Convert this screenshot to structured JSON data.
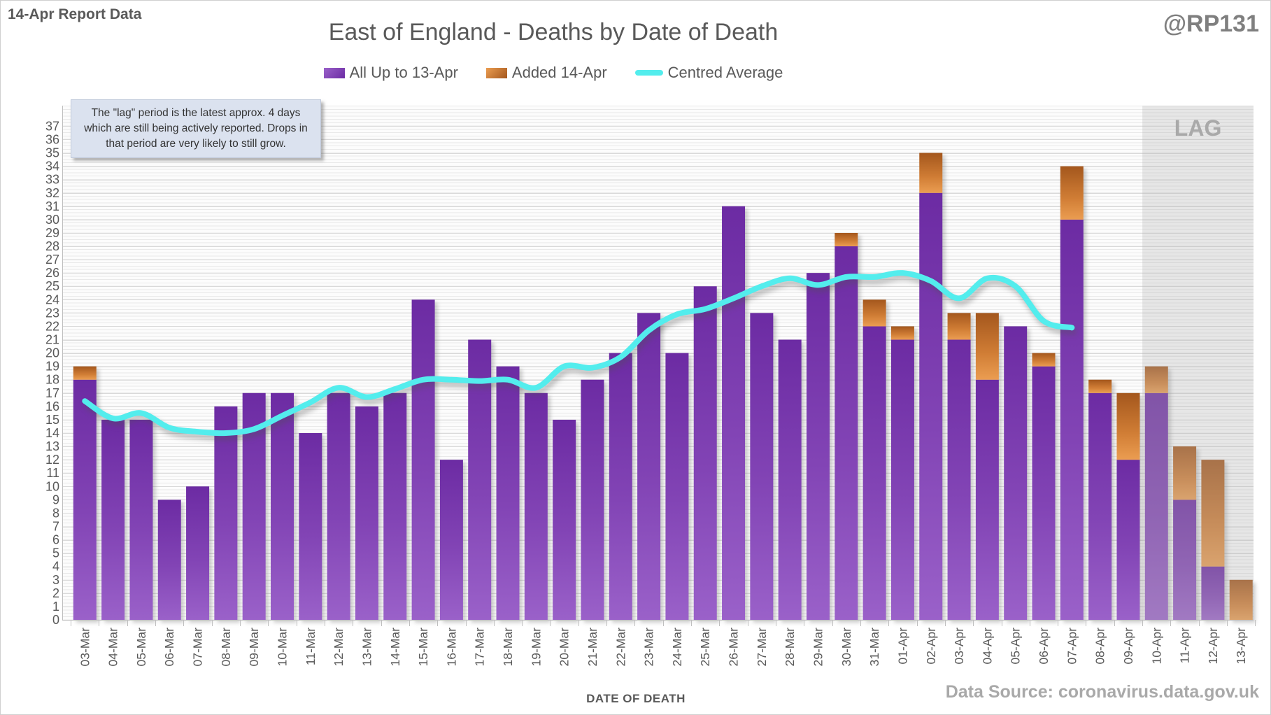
{
  "header": {
    "report_label": "14-Apr Report Data",
    "handle": "@RP131",
    "title": "East of England - Deaths by Date of Death"
  },
  "legend": [
    {
      "label": "All Up to 13-Apr",
      "swatch": "purple-gradient"
    },
    {
      "label": "Added 14-Apr",
      "swatch": "orange-gradient"
    },
    {
      "label": "Centred Average",
      "swatch": "cyan-line"
    }
  ],
  "annotation": {
    "text": "The \"lag\" period is the latest approx. 4 days which are still being actively reported. Drops in that period are very likely to still grow."
  },
  "xlabel": "DATE OF DEATH",
  "source": "Data Source: coronavirus.data.gov.uk",
  "colors": {
    "purple_top": "#6c2ba3",
    "purple_bottom": "#9a61c9",
    "orange_top": "#a4571d",
    "orange_bottom": "#eb9d51",
    "cyan_line": "#53eded",
    "gridline": "#d9d9d9",
    "axis": "#bfbfbf",
    "text_gray": "#595959",
    "muted_gray": "#a9a9a9",
    "lag_fill": "rgba(180,180,180,0.30)"
  },
  "chart_data": {
    "type": "bar",
    "subtype": "stacked-bars-with-line",
    "title": "East of England - Deaths by Date of Death",
    "xlabel": "DATE OF DEATH",
    "ylabel": "",
    "ylim": [
      0,
      37
    ],
    "ytick_step": 1,
    "grid": true,
    "legend_position": "top",
    "categories": [
      "03-Mar",
      "04-Mar",
      "05-Mar",
      "06-Mar",
      "07-Mar",
      "08-Mar",
      "09-Mar",
      "10-Mar",
      "11-Mar",
      "12-Mar",
      "13-Mar",
      "14-Mar",
      "15-Mar",
      "16-Mar",
      "17-Mar",
      "18-Mar",
      "19-Mar",
      "20-Mar",
      "21-Mar",
      "22-Mar",
      "23-Mar",
      "24-Mar",
      "25-Mar",
      "26-Mar",
      "27-Mar",
      "28-Mar",
      "29-Mar",
      "30-Mar",
      "31-Mar",
      "01-Apr",
      "02-Apr",
      "03-Apr",
      "04-Apr",
      "05-Apr",
      "06-Apr",
      "07-Apr",
      "08-Apr",
      "09-Apr",
      "10-Apr",
      "11-Apr",
      "12-Apr",
      "13-Apr"
    ],
    "series": [
      {
        "name": "All Up to 13-Apr",
        "type": "bar",
        "stack": "deaths",
        "values": [
          18,
          15,
          15,
          9,
          10,
          16,
          17,
          17,
          14,
          17,
          16,
          17,
          24,
          12,
          21,
          19,
          17,
          15,
          18,
          20,
          23,
          20,
          25,
          31,
          23,
          21,
          26,
          28,
          22,
          21,
          32,
          21,
          18,
          22,
          19,
          30,
          17,
          12,
          17,
          9,
          4,
          0
        ]
      },
      {
        "name": "Added 14-Apr",
        "type": "bar",
        "stack": "deaths",
        "values": [
          1,
          0,
          0,
          0,
          0,
          0,
          0,
          0,
          0,
          0,
          0,
          0,
          0,
          0,
          0,
          0,
          0,
          0,
          0,
          0,
          0,
          0,
          0,
          0,
          0,
          0,
          0,
          1,
          2,
          1,
          3,
          2,
          5,
          0,
          1,
          4,
          1,
          5,
          2,
          4,
          8,
          3
        ]
      },
      {
        "name": "Centred Average",
        "type": "line",
        "values": [
          16.4,
          15.1,
          15.5,
          14.4,
          14.1,
          14.0,
          14.3,
          15.3,
          16.3,
          17.4,
          16.7,
          17.3,
          18.0,
          18.0,
          17.9,
          18.0,
          17.4,
          19.0,
          18.9,
          19.7,
          21.7,
          22.9,
          23.3,
          24.1,
          25.0,
          25.6,
          25.1,
          25.7,
          25.7,
          26.0,
          25.4,
          24.1,
          25.6,
          25.0,
          22.4,
          21.9,
          null,
          null,
          null,
          null,
          null,
          null
        ]
      }
    ],
    "lag_region": {
      "start_category": "10-Apr",
      "end_category": "13-Apr",
      "label": "LAG"
    }
  }
}
